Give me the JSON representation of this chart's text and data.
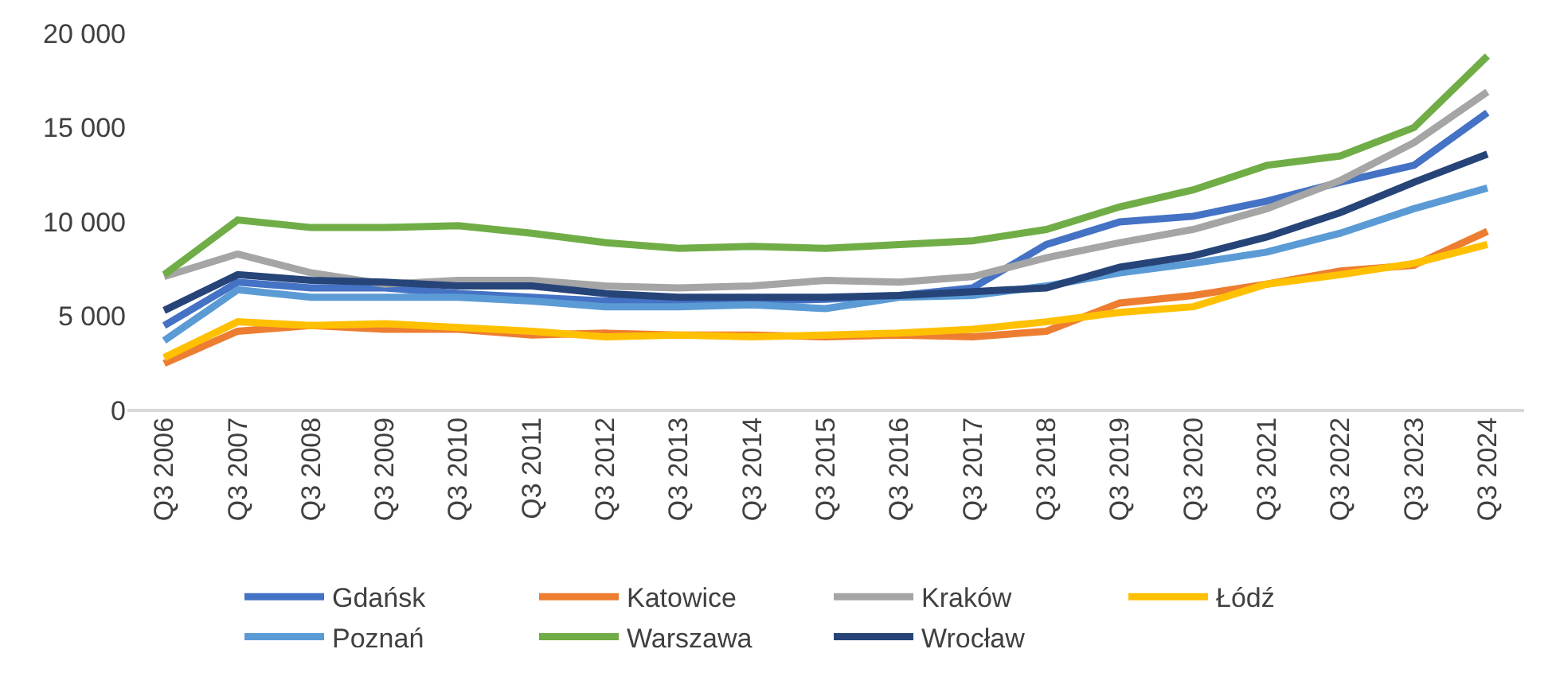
{
  "chart_data": {
    "type": "line",
    "categories": [
      "Q3 2006",
      "Q3 2007",
      "Q3 2008",
      "Q3 2009",
      "Q3 2010",
      "Q3 2011",
      "Q3 2012",
      "Q3 2013",
      "Q3 2014",
      "Q3 2015",
      "Q3 2016",
      "Q3 2017",
      "Q3 2018",
      "Q3 2019",
      "Q3 2020",
      "Q3 2021",
      "Q3 2022",
      "Q3 2023",
      "Q3 2024"
    ],
    "series": [
      {
        "name": "Gdańsk",
        "color": "#4472c4",
        "values": [
          4500,
          6800,
          6500,
          6500,
          6200,
          6000,
          5800,
          5800,
          5800,
          5900,
          6100,
          6500,
          8800,
          10000,
          10300,
          11100,
          12100,
          13000,
          15800
        ]
      },
      {
        "name": "Katowice",
        "color": "#ed7d31",
        "values": [
          2500,
          4200,
          4500,
          4300,
          4300,
          4000,
          4100,
          4000,
          4000,
          3900,
          4000,
          3900,
          4200,
          5700,
          6100,
          6700,
          7400,
          7700,
          9500
        ]
      },
      {
        "name": "Kraków",
        "color": "#a5a5a5",
        "values": [
          7100,
          8300,
          7300,
          6700,
          6900,
          6900,
          6600,
          6500,
          6600,
          6900,
          6800,
          7100,
          8100,
          8900,
          9600,
          10700,
          12200,
          14200,
          16900
        ]
      },
      {
        "name": "Łódź",
        "color": "#ffc000",
        "values": [
          2800,
          4700,
          4500,
          4600,
          4400,
          4200,
          3900,
          4000,
          3900,
          4000,
          4100,
          4300,
          4700,
          5200,
          5500,
          6700,
          7200,
          7800,
          8800
        ]
      },
      {
        "name": "Poznań",
        "color": "#5b9bd5",
        "values": [
          3700,
          6400,
          6000,
          6000,
          6000,
          5800,
          5500,
          5500,
          5600,
          5400,
          6000,
          6100,
          6600,
          7300,
          7800,
          8400,
          9400,
          10700,
          11800
        ]
      },
      {
        "name": "Warszawa",
        "color": "#70ad47",
        "values": [
          7200,
          10100,
          9700,
          9700,
          9800,
          9400,
          8900,
          8600,
          8700,
          8600,
          8800,
          9000,
          9600,
          10800,
          11700,
          13000,
          13500,
          15000,
          18800
        ]
      },
      {
        "name": "Wrocław",
        "color": "#264478",
        "values": [
          5300,
          7200,
          6900,
          6800,
          6600,
          6600,
          6200,
          6000,
          6000,
          6000,
          6100,
          6300,
          6500,
          7600,
          8200,
          9200,
          10500,
          12100,
          13600
        ]
      }
    ],
    "ylim": [
      0,
      20000
    ],
    "yticks": [
      {
        "value": 0,
        "label": "0"
      },
      {
        "value": 5000,
        "label": "5 000"
      },
      {
        "value": 10000,
        "label": "10 000"
      },
      {
        "value": 15000,
        "label": "15 000"
      },
      {
        "value": 20000,
        "label": "20 000"
      }
    ],
    "legend": "bottom",
    "marker": "none",
    "line_style": "solid"
  }
}
